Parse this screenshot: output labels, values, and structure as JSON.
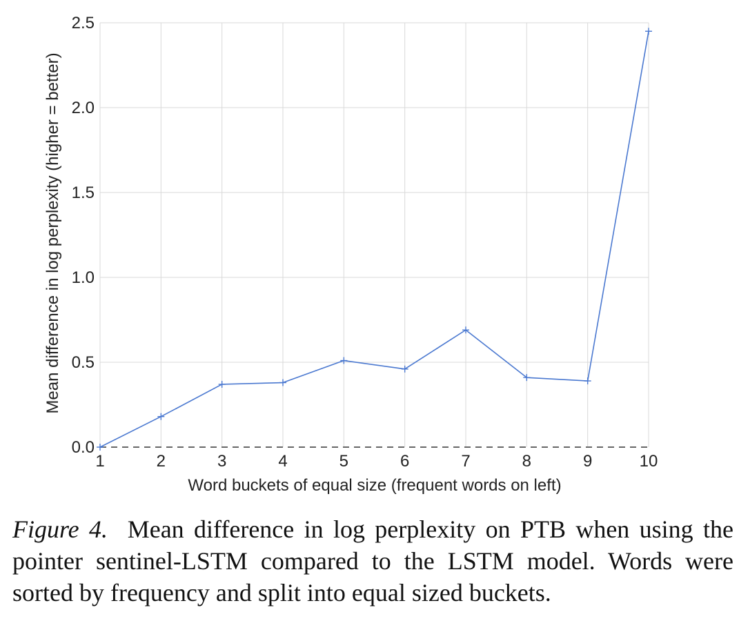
{
  "chart_data": {
    "type": "line",
    "xlabel": "Word buckets of equal size (frequent words on left)",
    "ylabel": "Mean difference in log perplexity (higher = better)",
    "x": [
      1,
      2,
      3,
      4,
      5,
      6,
      7,
      8,
      9,
      10
    ],
    "x_tick_labels": [
      "1",
      "2",
      "3",
      "4",
      "5",
      "6",
      "7",
      "8",
      "9",
      "10"
    ],
    "y_ticks": [
      0.0,
      0.5,
      1.0,
      1.5,
      2.0,
      2.5
    ],
    "y_tick_labels": [
      "0.0",
      "0.5",
      "1.0",
      "1.5",
      "2.0",
      "2.5"
    ],
    "xlim": [
      1,
      10
    ],
    "ylim": [
      0.0,
      2.5
    ],
    "grid": true,
    "baseline": {
      "y": 0.0,
      "style": "dashed"
    },
    "series": [
      {
        "values": [
          0.0,
          0.18,
          0.37,
          0.38,
          0.51,
          0.46,
          0.69,
          0.41,
          0.39,
          2.45
        ],
        "color": "#4a78d0",
        "marker": "plus"
      }
    ]
  },
  "caption": {
    "label": "Figure 4.",
    "text": "Mean difference in log perplexity on PTB when using the pointer sentinel-LSTM compared to the LSTM model. Words were sorted by frequency and split into equal sized buckets."
  },
  "colors": {
    "grid": "#d9d9d9",
    "baseline": "#666666",
    "text": "#222222"
  }
}
